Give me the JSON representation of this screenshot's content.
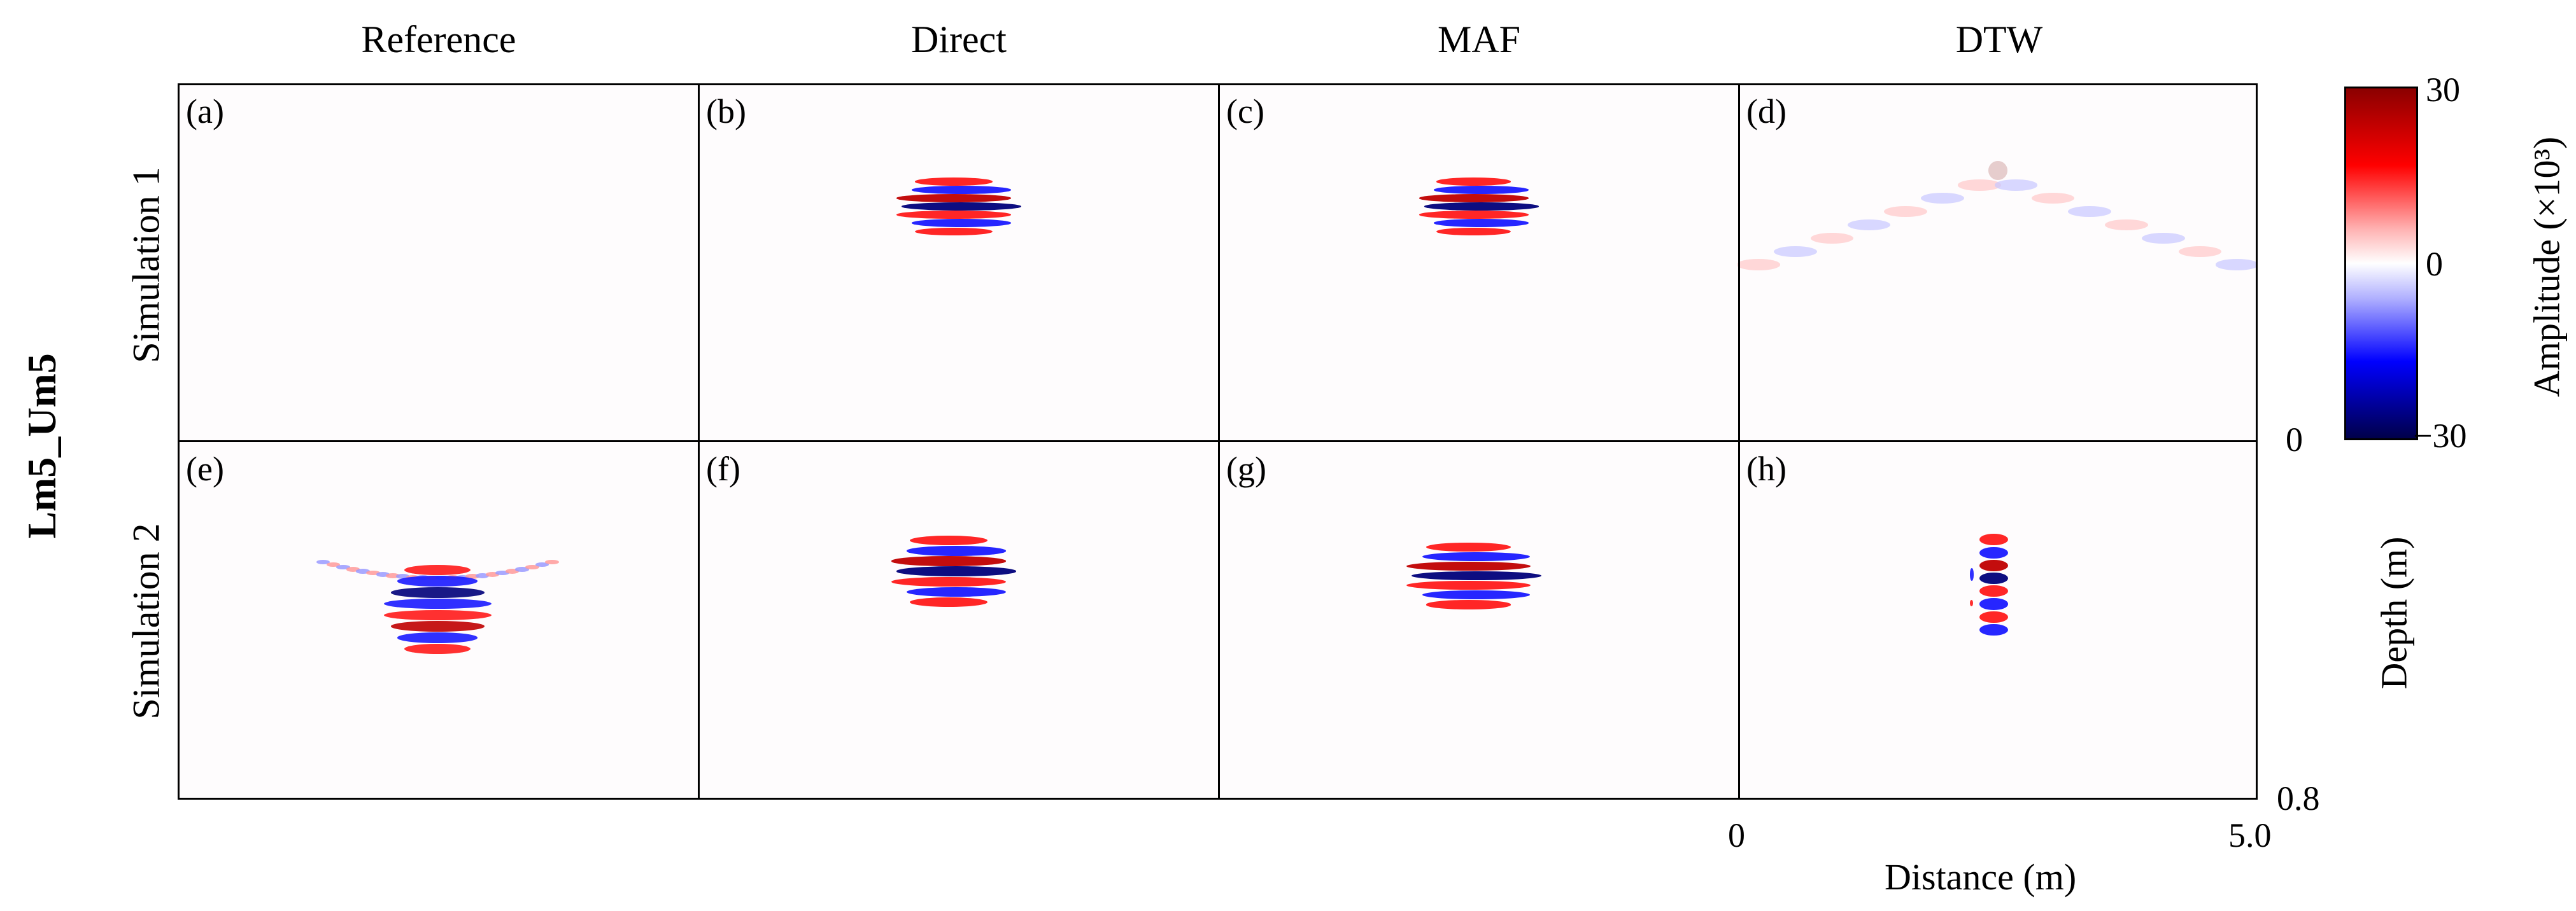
{
  "figure": {
    "group_label": "Lm5_Um5",
    "column_titles": [
      "Reference",
      "Direct",
      "MAF",
      "DTW"
    ],
    "row_titles": [
      "Simulation 1",
      "Simulation 2"
    ],
    "panel_labels": [
      "(a)",
      "(b)",
      "(c)",
      "(d)",
      "(e)",
      "(f)",
      "(g)",
      "(h)"
    ]
  },
  "chart_data": {
    "type": "heatmap",
    "layout": "2x4 grid of image panels",
    "x_axis": {
      "label": "Distance (m)",
      "range": [
        0,
        5.0
      ],
      "ticks": [
        "0",
        "5.0"
      ]
    },
    "y_axis": {
      "label": "Depth (m)",
      "range": [
        0,
        0.8
      ],
      "ticks": [
        "0",
        "0.8"
      ],
      "inverted": true
    },
    "colorbar": {
      "label": "Amplitude (×10³)",
      "range": [
        -30,
        30
      ],
      "ticks": [
        "30",
        "0",
        "−30"
      ],
      "colormap": "seismic (dark red – red – white – blue – dark blue)",
      "colors": [
        "#8b0000",
        "#ff0000",
        "#ffffff",
        "#0000ff",
        "#00004a"
      ]
    },
    "panels": [
      {
        "label": "(a)",
        "row": "Simulation 1",
        "column": "Reference",
        "feature": "none"
      },
      {
        "label": "(b)",
        "row": "Simulation 1",
        "column": "Direct",
        "feature": "striped",
        "cx": 2.5,
        "cy": 0.275,
        "w": 1.15,
        "h": 0.13
      },
      {
        "label": "(c)",
        "row": "Simulation 1",
        "column": "MAF",
        "feature": "striped",
        "cx": 2.5,
        "cy": 0.275,
        "w": 1.1,
        "h": 0.13
      },
      {
        "label": "(d)",
        "row": "Simulation 1",
        "column": "DTW",
        "feature": "faint",
        "cx": 2.5,
        "cy": 0.3,
        "w": 4.6,
        "h": 0.35
      },
      {
        "label": "(e)",
        "row": "Simulation 2",
        "column": "Reference",
        "feature": "hyperbola",
        "cx": 2.5,
        "cy": 0.35,
        "w": 2.2,
        "h": 0.18
      },
      {
        "label": "(f)",
        "row": "Simulation 2",
        "column": "Direct",
        "feature": "striped",
        "cx": 2.45,
        "cy": 0.29,
        "w": 1.15,
        "h": 0.16
      },
      {
        "label": "(g)",
        "row": "Simulation 2",
        "column": "MAF",
        "feature": "striped",
        "cx": 2.45,
        "cy": 0.3,
        "w": 1.25,
        "h": 0.15
      },
      {
        "label": "(h)",
        "row": "Simulation 2",
        "column": "DTW",
        "feature": "narrow",
        "cx": 2.4,
        "cy": 0.32,
        "w": 0.5,
        "h": 0.23
      }
    ]
  }
}
